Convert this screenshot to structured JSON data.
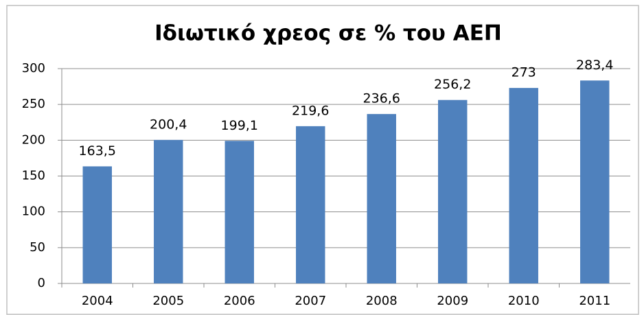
{
  "chart_data": {
    "type": "bar",
    "title": "Ιδιωτικό χρεος σε % του ΑΕΠ",
    "categories": [
      "2004",
      "2005",
      "2006",
      "2007",
      "2008",
      "2009",
      "2010",
      "2011"
    ],
    "values": [
      163.5,
      200.4,
      199.1,
      219.6,
      236.6,
      256.2,
      273,
      283.4
    ],
    "value_labels": [
      "163,5",
      "200,4",
      "199,1",
      "219,6",
      "236,6",
      "256,2",
      "273",
      "283,4"
    ],
    "color": "#4f81bd",
    "ylim": [
      0,
      300
    ],
    "yticks": [
      0,
      50,
      100,
      150,
      200,
      250,
      300
    ],
    "grid": true
  }
}
